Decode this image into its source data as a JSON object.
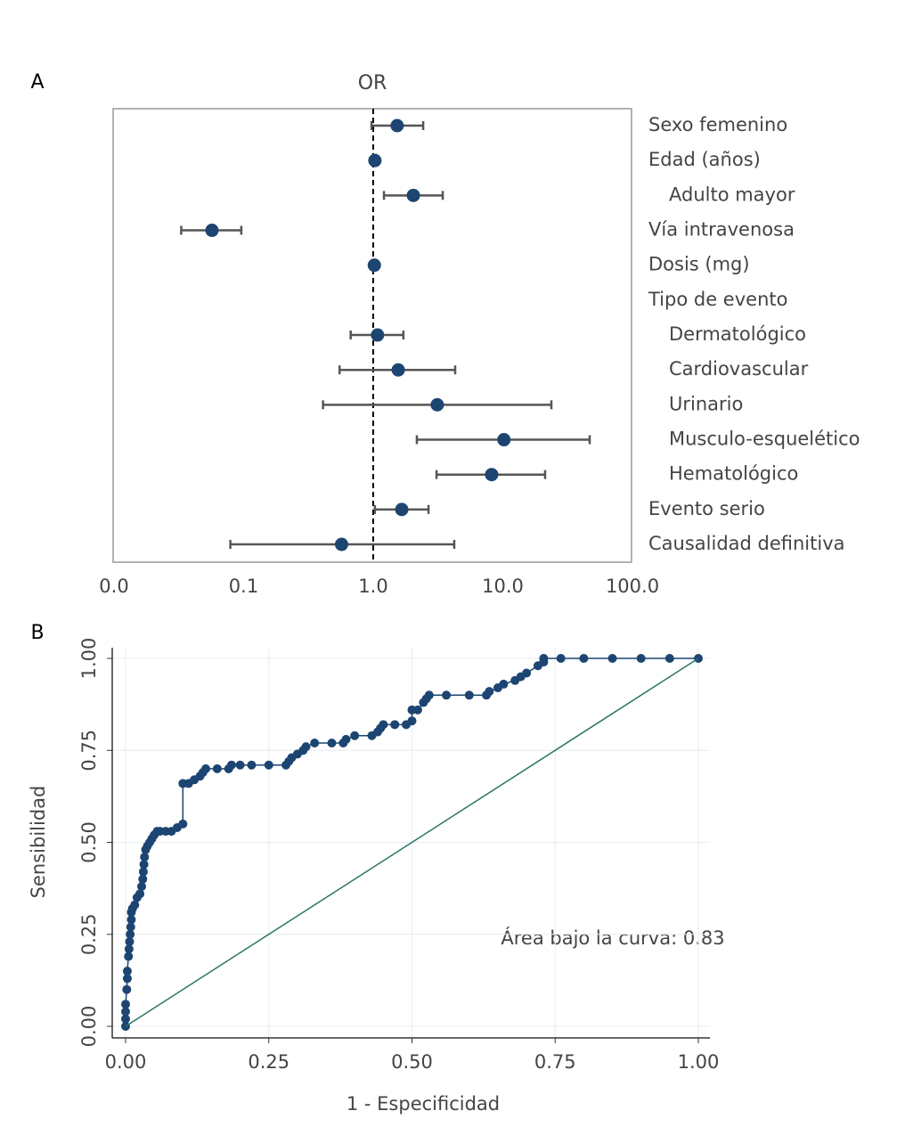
{
  "chart_data": [
    {
      "type": "forest",
      "panel": "A",
      "title": "OR",
      "categories": [
        "Sexo femenino",
        "Edad (años)",
        "Adulto mayor",
        "Vía intravenosa",
        "Dosis (mg)",
        "Tipo de evento",
        "Dermatológico",
        "Cardiovascular",
        "Urinario",
        "Musculo-esquelético",
        "Hematológico",
        "Evento serio",
        "Causalidad definitiva"
      ],
      "values": [
        1.53,
        1.03,
        2.04,
        0.057,
        1.02,
        null,
        1.08,
        1.56,
        3.12,
        10.2,
        8.2,
        1.66,
        0.57
      ],
      "lower": [
        0.97,
        null,
        1.21,
        0.033,
        null,
        null,
        0.67,
        0.55,
        0.41,
        2.17,
        3.08,
        1.03,
        0.079
      ],
      "upper": [
        2.43,
        null,
        3.44,
        0.096,
        null,
        null,
        1.71,
        4.29,
        23.7,
        46.8,
        21.2,
        2.67,
        4.22
      ],
      "color": "#1d4572",
      "error_color": "#555555",
      "log_x": true,
      "reference_line": 1,
      "xlim": [
        0.01,
        100
      ],
      "xticks": [
        {
          "value": 0.01,
          "label": "0.0"
        },
        {
          "value": 0.1,
          "label": "0.1"
        },
        {
          "value": 1,
          "label": "1.0"
        },
        {
          "value": 10,
          "label": "10.0"
        },
        {
          "value": 100,
          "label": "100.0"
        }
      ]
    },
    {
      "type": "roc",
      "panel": "B",
      "x_label": "1 - Especificidad",
      "y_label": "Sensibilidad",
      "annotation": "Área bajo la curva: 0.83",
      "grid": true,
      "series": [
        {
          "color": "#1d4572",
          "markers": true,
          "x": [
            0,
            0,
            0,
            0,
            0.002,
            0.003,
            0.003,
            0.005,
            0.006,
            0.007,
            0.008,
            0.009,
            0.01,
            0.01,
            0.012,
            0.016,
            0.02,
            0.025,
            0.028,
            0.03,
            0.031,
            0.032,
            0.033,
            0.035,
            0.038,
            0.042,
            0.046,
            0.05,
            0.055,
            0.06,
            0.07,
            0.08,
            0.09,
            0.1,
            0.1,
            0.11,
            0.12,
            0.13,
            0.135,
            0.14,
            0.16,
            0.18,
            0.185,
            0.2,
            0.22,
            0.25,
            0.28,
            0.285,
            0.29,
            0.3,
            0.31,
            0.315,
            0.33,
            0.36,
            0.38,
            0.385,
            0.4,
            0.43,
            0.44,
            0.445,
            0.45,
            0.47,
            0.49,
            0.5,
            0.5,
            0.51,
            0.52,
            0.525,
            0.53,
            0.56,
            0.6,
            0.63,
            0.635,
            0.65,
            0.66,
            0.68,
            0.69,
            0.7,
            0.72,
            0.73,
            0.73,
            0.76,
            0.8,
            0.85,
            0.9,
            0.95,
            1.0
          ],
          "values": [
            0,
            0.02,
            0.04,
            0.06,
            0.1,
            0.13,
            0.15,
            0.19,
            0.21,
            0.23,
            0.25,
            0.27,
            0.29,
            0.31,
            0.32,
            0.33,
            0.35,
            0.36,
            0.38,
            0.4,
            0.42,
            0.44,
            0.46,
            0.48,
            0.49,
            0.5,
            0.51,
            0.52,
            0.53,
            0.53,
            0.53,
            0.53,
            0.54,
            0.55,
            0.66,
            0.66,
            0.67,
            0.68,
            0.69,
            0.7,
            0.7,
            0.7,
            0.71,
            0.71,
            0.71,
            0.71,
            0.71,
            0.72,
            0.73,
            0.74,
            0.75,
            0.76,
            0.77,
            0.77,
            0.77,
            0.78,
            0.79,
            0.79,
            0.8,
            0.81,
            0.82,
            0.82,
            0.82,
            0.83,
            0.86,
            0.86,
            0.88,
            0.89,
            0.9,
            0.9,
            0.9,
            0.9,
            0.91,
            0.92,
            0.93,
            0.94,
            0.95,
            0.96,
            0.98,
            0.99,
            1.0,
            1.0,
            1.0,
            1.0,
            1.0,
            1.0,
            1.0
          ]
        },
        {
          "color": "#2a7566",
          "markers": false,
          "x": [
            0,
            1
          ],
          "values": [
            0,
            1
          ]
        }
      ],
      "xlim": [
        0,
        1
      ],
      "ylim": [
        0,
        1
      ],
      "xticks": [
        {
          "value": 0,
          "label": "0.00"
        },
        {
          "value": 0.25,
          "label": "0.25"
        },
        {
          "value": 0.5,
          "label": "0.50"
        },
        {
          "value": 0.75,
          "label": "0.75"
        },
        {
          "value": 1,
          "label": "1.00"
        }
      ],
      "yticks": [
        {
          "value": 0,
          "label": "0.00"
        },
        {
          "value": 0.25,
          "label": "0.25"
        },
        {
          "value": 0.5,
          "label": "0.50"
        },
        {
          "value": 0.75,
          "label": "0.75"
        },
        {
          "value": 1,
          "label": "1.00"
        }
      ]
    }
  ]
}
